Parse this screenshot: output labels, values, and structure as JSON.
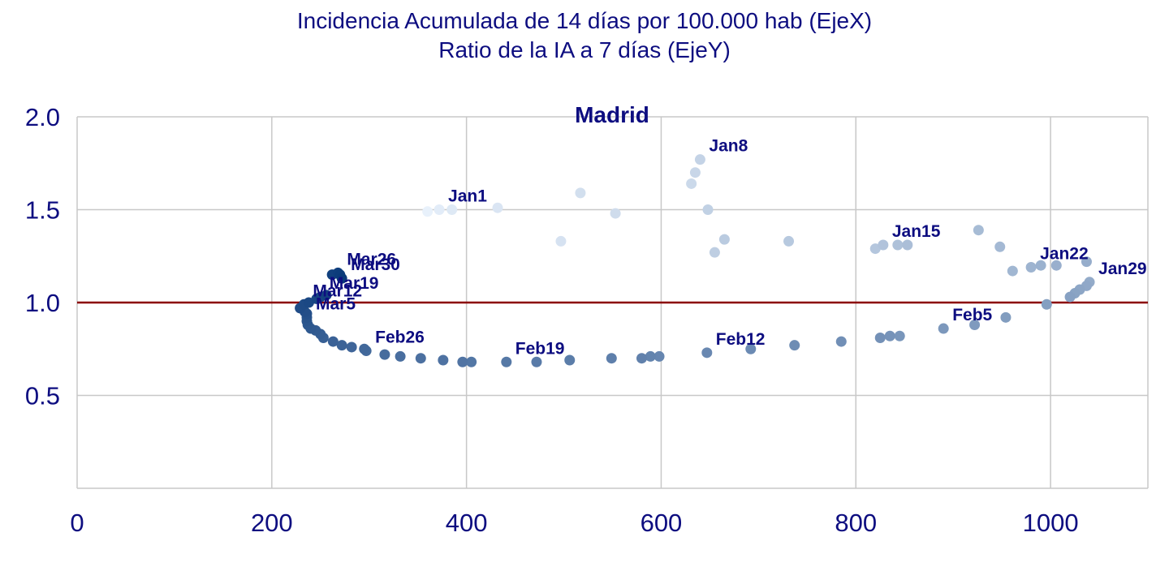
{
  "chart_data": {
    "type": "scatter",
    "title": [
      "Incidencia Acumulada de 14 días por 100.000 hab (EjeX)",
      "Ratio de la IA a 7 días (EjeY)"
    ],
    "subtitle": "Madrid",
    "xlabel": "",
    "ylabel": "",
    "xlim": [
      0,
      1100
    ],
    "ylim": [
      0,
      2.0
    ],
    "x_ticks": [
      0,
      200,
      400,
      600,
      800,
      1000
    ],
    "y_ticks": [
      0.5,
      1.0,
      1.5,
      2.0
    ],
    "grid": true,
    "reference_line": {
      "y": 1.0,
      "color": "#8b0000"
    },
    "color_start": "#e8f1fb",
    "color_end": "#0a3a7a",
    "points": [
      {
        "x": 360,
        "y": 1.49
      },
      {
        "x": 372,
        "y": 1.5,
        "label": "Jan1"
      },
      {
        "x": 385,
        "y": 1.5
      },
      {
        "x": 432,
        "y": 1.51
      },
      {
        "x": 497,
        "y": 1.33
      },
      {
        "x": 517,
        "y": 1.59
      },
      {
        "x": 553,
        "y": 1.48
      },
      {
        "x": 631,
        "y": 1.64
      },
      {
        "x": 635,
        "y": 1.7
      },
      {
        "x": 640,
        "y": 1.77,
        "label": "Jan8"
      },
      {
        "x": 648,
        "y": 1.5
      },
      {
        "x": 655,
        "y": 1.27
      },
      {
        "x": 665,
        "y": 1.34
      },
      {
        "x": 731,
        "y": 1.33
      },
      {
        "x": 820,
        "y": 1.29
      },
      {
        "x": 828,
        "y": 1.31,
        "label": "Jan15"
      },
      {
        "x": 843,
        "y": 1.31
      },
      {
        "x": 853,
        "y": 1.31
      },
      {
        "x": 926,
        "y": 1.39
      },
      {
        "x": 948,
        "y": 1.3
      },
      {
        "x": 961,
        "y": 1.17
      },
      {
        "x": 980,
        "y": 1.19,
        "label": "Jan22"
      },
      {
        "x": 990,
        "y": 1.2
      },
      {
        "x": 1006,
        "y": 1.2
      },
      {
        "x": 1037,
        "y": 1.22
      },
      {
        "x": 1040,
        "y": 1.11,
        "label": "Jan29"
      },
      {
        "x": 1037,
        "y": 1.09
      },
      {
        "x": 1030,
        "y": 1.07
      },
      {
        "x": 1025,
        "y": 1.05
      },
      {
        "x": 1020,
        "y": 1.03
      },
      {
        "x": 996,
        "y": 0.99
      },
      {
        "x": 954,
        "y": 0.92
      },
      {
        "x": 922,
        "y": 0.88
      },
      {
        "x": 890,
        "y": 0.86,
        "label": "Feb5"
      },
      {
        "x": 845,
        "y": 0.82
      },
      {
        "x": 835,
        "y": 0.82
      },
      {
        "x": 825,
        "y": 0.81
      },
      {
        "x": 785,
        "y": 0.79
      },
      {
        "x": 737,
        "y": 0.77
      },
      {
        "x": 692,
        "y": 0.75
      },
      {
        "x": 647,
        "y": 0.73,
        "label": "Feb12"
      },
      {
        "x": 598,
        "y": 0.71
      },
      {
        "x": 589,
        "y": 0.71
      },
      {
        "x": 580,
        "y": 0.7
      },
      {
        "x": 549,
        "y": 0.7
      },
      {
        "x": 506,
        "y": 0.69
      },
      {
        "x": 472,
        "y": 0.68
      },
      {
        "x": 441,
        "y": 0.68,
        "label": "Feb19"
      },
      {
        "x": 405,
        "y": 0.68
      },
      {
        "x": 396,
        "y": 0.68
      },
      {
        "x": 376,
        "y": 0.69
      },
      {
        "x": 353,
        "y": 0.7
      },
      {
        "x": 332,
        "y": 0.71
      },
      {
        "x": 316,
        "y": 0.72
      },
      {
        "x": 297,
        "y": 0.74,
        "label": "Feb26"
      },
      {
        "x": 295,
        "y": 0.75
      },
      {
        "x": 282,
        "y": 0.76
      },
      {
        "x": 272,
        "y": 0.77
      },
      {
        "x": 263,
        "y": 0.79
      },
      {
        "x": 253,
        "y": 0.81
      },
      {
        "x": 250,
        "y": 0.83
      },
      {
        "x": 245,
        "y": 0.85
      },
      {
        "x": 240,
        "y": 0.86
      },
      {
        "x": 237,
        "y": 0.88
      },
      {
        "x": 236,
        "y": 0.9
      },
      {
        "x": 236,
        "y": 0.92,
        "label": "Mar5"
      },
      {
        "x": 236,
        "y": 0.94
      },
      {
        "x": 234,
        "y": 0.95
      },
      {
        "x": 229,
        "y": 0.97
      },
      {
        "x": 233,
        "y": 0.99,
        "label": "Mar12"
      },
      {
        "x": 238,
        "y": 1.0
      },
      {
        "x": 246,
        "y": 1.02
      },
      {
        "x": 250,
        "y": 1.03,
        "label": "Mar19"
      },
      {
        "x": 256,
        "y": 1.04
      },
      {
        "x": 262,
        "y": 1.15
      },
      {
        "x": 268,
        "y": 1.16,
        "label": "Mar26"
      },
      {
        "x": 270,
        "y": 1.15
      },
      {
        "x": 272,
        "y": 1.13,
        "label": "Mar30"
      }
    ]
  }
}
